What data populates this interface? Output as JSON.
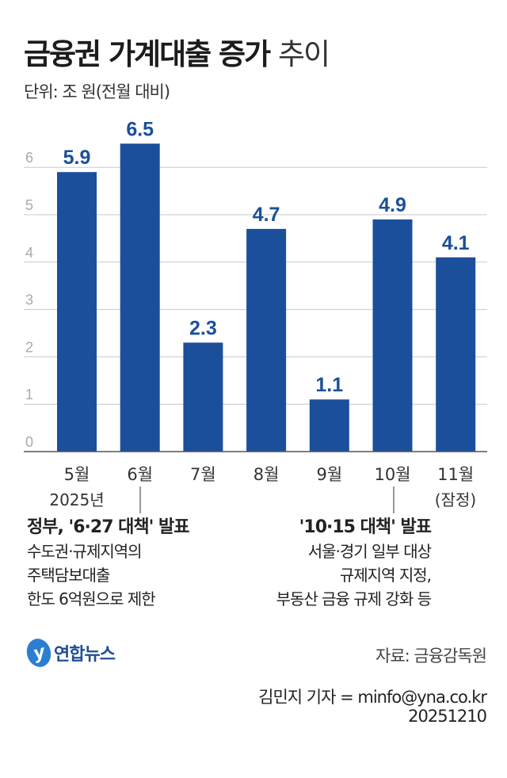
{
  "chart_data": {
    "type": "bar",
    "title": "금융권 가계대출 증가",
    "title_suffix": "추이",
    "unit": "단위: 조 원(전월 대비)",
    "categories": [
      "5월",
      "6월",
      "7월",
      "8월",
      "9월",
      "10월",
      "11월"
    ],
    "values": [
      5.9,
      6.5,
      2.3,
      4.7,
      1.1,
      4.9,
      4.1
    ],
    "value_labels": [
      "5.9",
      "6.5",
      "2.3",
      "4.7",
      "1.1",
      "4.9",
      "4.1"
    ],
    "sublabels": {
      "year": "2025년",
      "provisional": "(잠정)"
    },
    "yticks": [
      "0",
      "1",
      "2",
      "3",
      "4",
      "5",
      "6"
    ],
    "ylim": [
      0,
      6.5
    ],
    "grid": true,
    "bar_color": "#1b4f9b"
  },
  "annotations": [
    {
      "title": "정부, '6·27 대책' 발표",
      "lines": [
        "수도권·규제지역의",
        "주택담보대출",
        "한도 6억원으로 제한"
      ]
    },
    {
      "title": "'10·15 대책' 발표",
      "lines": [
        "서울·경기 일부 대상",
        "규제지역 지정,",
        "부동산 금융 규제 강화 등"
      ]
    }
  ],
  "footer": {
    "logo": "연합뉴스",
    "source": "자료: 금융감독원",
    "credit": "김민지 기자 = minfo@yna.co.kr",
    "date": "20251210"
  }
}
